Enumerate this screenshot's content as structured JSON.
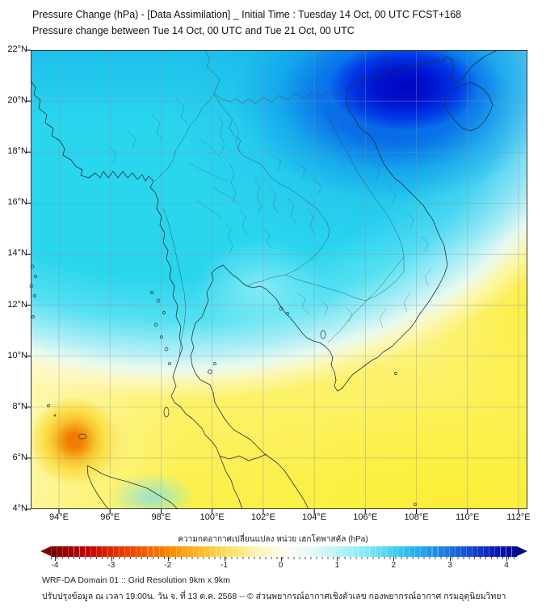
{
  "title": {
    "line1": "Pressure Change (hPa) - [Data Assimilation] _ Initial Time : Tuesday 14 Oct, 00 UTC FCST+168",
    "line2": "Pressure change between Tue 14 Oct, 00 UTC and Tue 21 Oct, 00 UTC"
  },
  "map": {
    "lat_labels": [
      "22°N",
      "20°N",
      "18°N",
      "16°N",
      "14°N",
      "12°N",
      "10°N",
      "8°N",
      "6°N",
      "4°N"
    ],
    "lon_labels": [
      "94°E",
      "96°E",
      "98°E",
      "100°E",
      "102°E",
      "104°E",
      "106°E",
      "108°E",
      "110°E",
      "112°E"
    ]
  },
  "colorbar": {
    "label": "ความกดอากาศเปลี่ยนแปลง หน่วย เฮกโตพาสคัล (hPa)",
    "tick_labels": [
      "-4",
      "-3",
      "-2",
      "-1",
      "0",
      "1",
      "2",
      "3",
      "4"
    ],
    "min_color": "#7e0000",
    "zero_color": "#fdfdf0",
    "max_color": "#000d7e"
  },
  "footer": {
    "line1": "WRF-DA Domain 01 :: Grid Resolution 9km x 9km",
    "line2": "ปรับปรุงข้อมูล ณ เวลา 19:00น. วัน จ. ที่ 13 ต.ค. 2568 -- © ส่วนพยากรณ์อากาศเชิงตัวเลข กองพยากรณ์อากาศ กรมอุตุนิยมวิทยา"
  },
  "field": {
    "type": "filled-contour pressure-change map over Thailand / Indochina",
    "units": "hPa",
    "max_rise": {
      "value_hpa": 4,
      "location": "northern Vietnam / Gulf of Tonkin (~104-108°E, 20-22°N)"
    },
    "max_fall": {
      "value_hpa": -2,
      "location": "Andaman Sea west of N. Sumatra (~95.5°E, 7°N)"
    },
    "pattern": "Positive change (cyan/dark blue) over the northern half; weak negative change (pale yellow/yellow) over the south and east, small orange minimum in the far southwest"
  },
  "colors": {
    "sea_cyan": "#2ad5ee",
    "deep_blue": "#0007c0",
    "yellow": "#fbf048",
    "orange_spot": "#f07c00"
  }
}
